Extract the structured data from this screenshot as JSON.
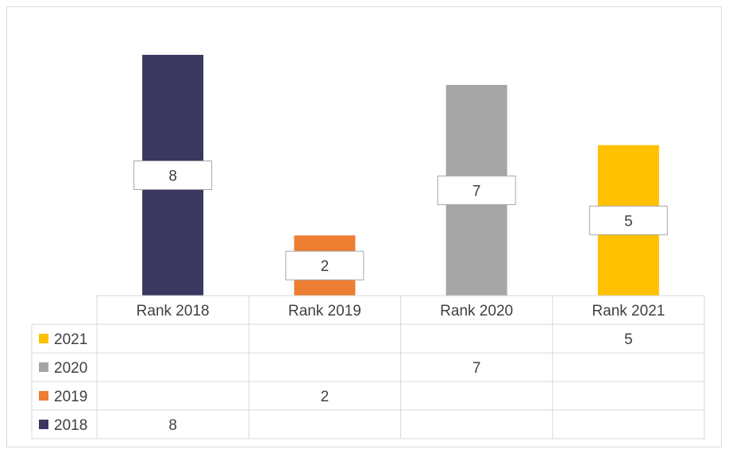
{
  "chart_data": {
    "type": "bar",
    "categories": [
      "Rank 2018",
      "Rank 2019",
      "Rank 2020",
      "Rank 2021"
    ],
    "series": [
      {
        "name": "2018",
        "color": "#3A3761",
        "values": [
          8,
          null,
          null,
          null
        ]
      },
      {
        "name": "2019",
        "color": "#ED7D31",
        "values": [
          null,
          2,
          null,
          null
        ]
      },
      {
        "name": "2020",
        "color": "#A5A5A5",
        "values": [
          null,
          null,
          7,
          null
        ]
      },
      {
        "name": "2021",
        "color": "#FFC000",
        "values": [
          null,
          null,
          null,
          5
        ]
      }
    ],
    "ylim": [
      0,
      8
    ],
    "grid": false,
    "legend": "data-table-left",
    "data_table": true,
    "data_table_row_order": [
      "2021",
      "2020",
      "2019",
      "2018"
    ]
  }
}
